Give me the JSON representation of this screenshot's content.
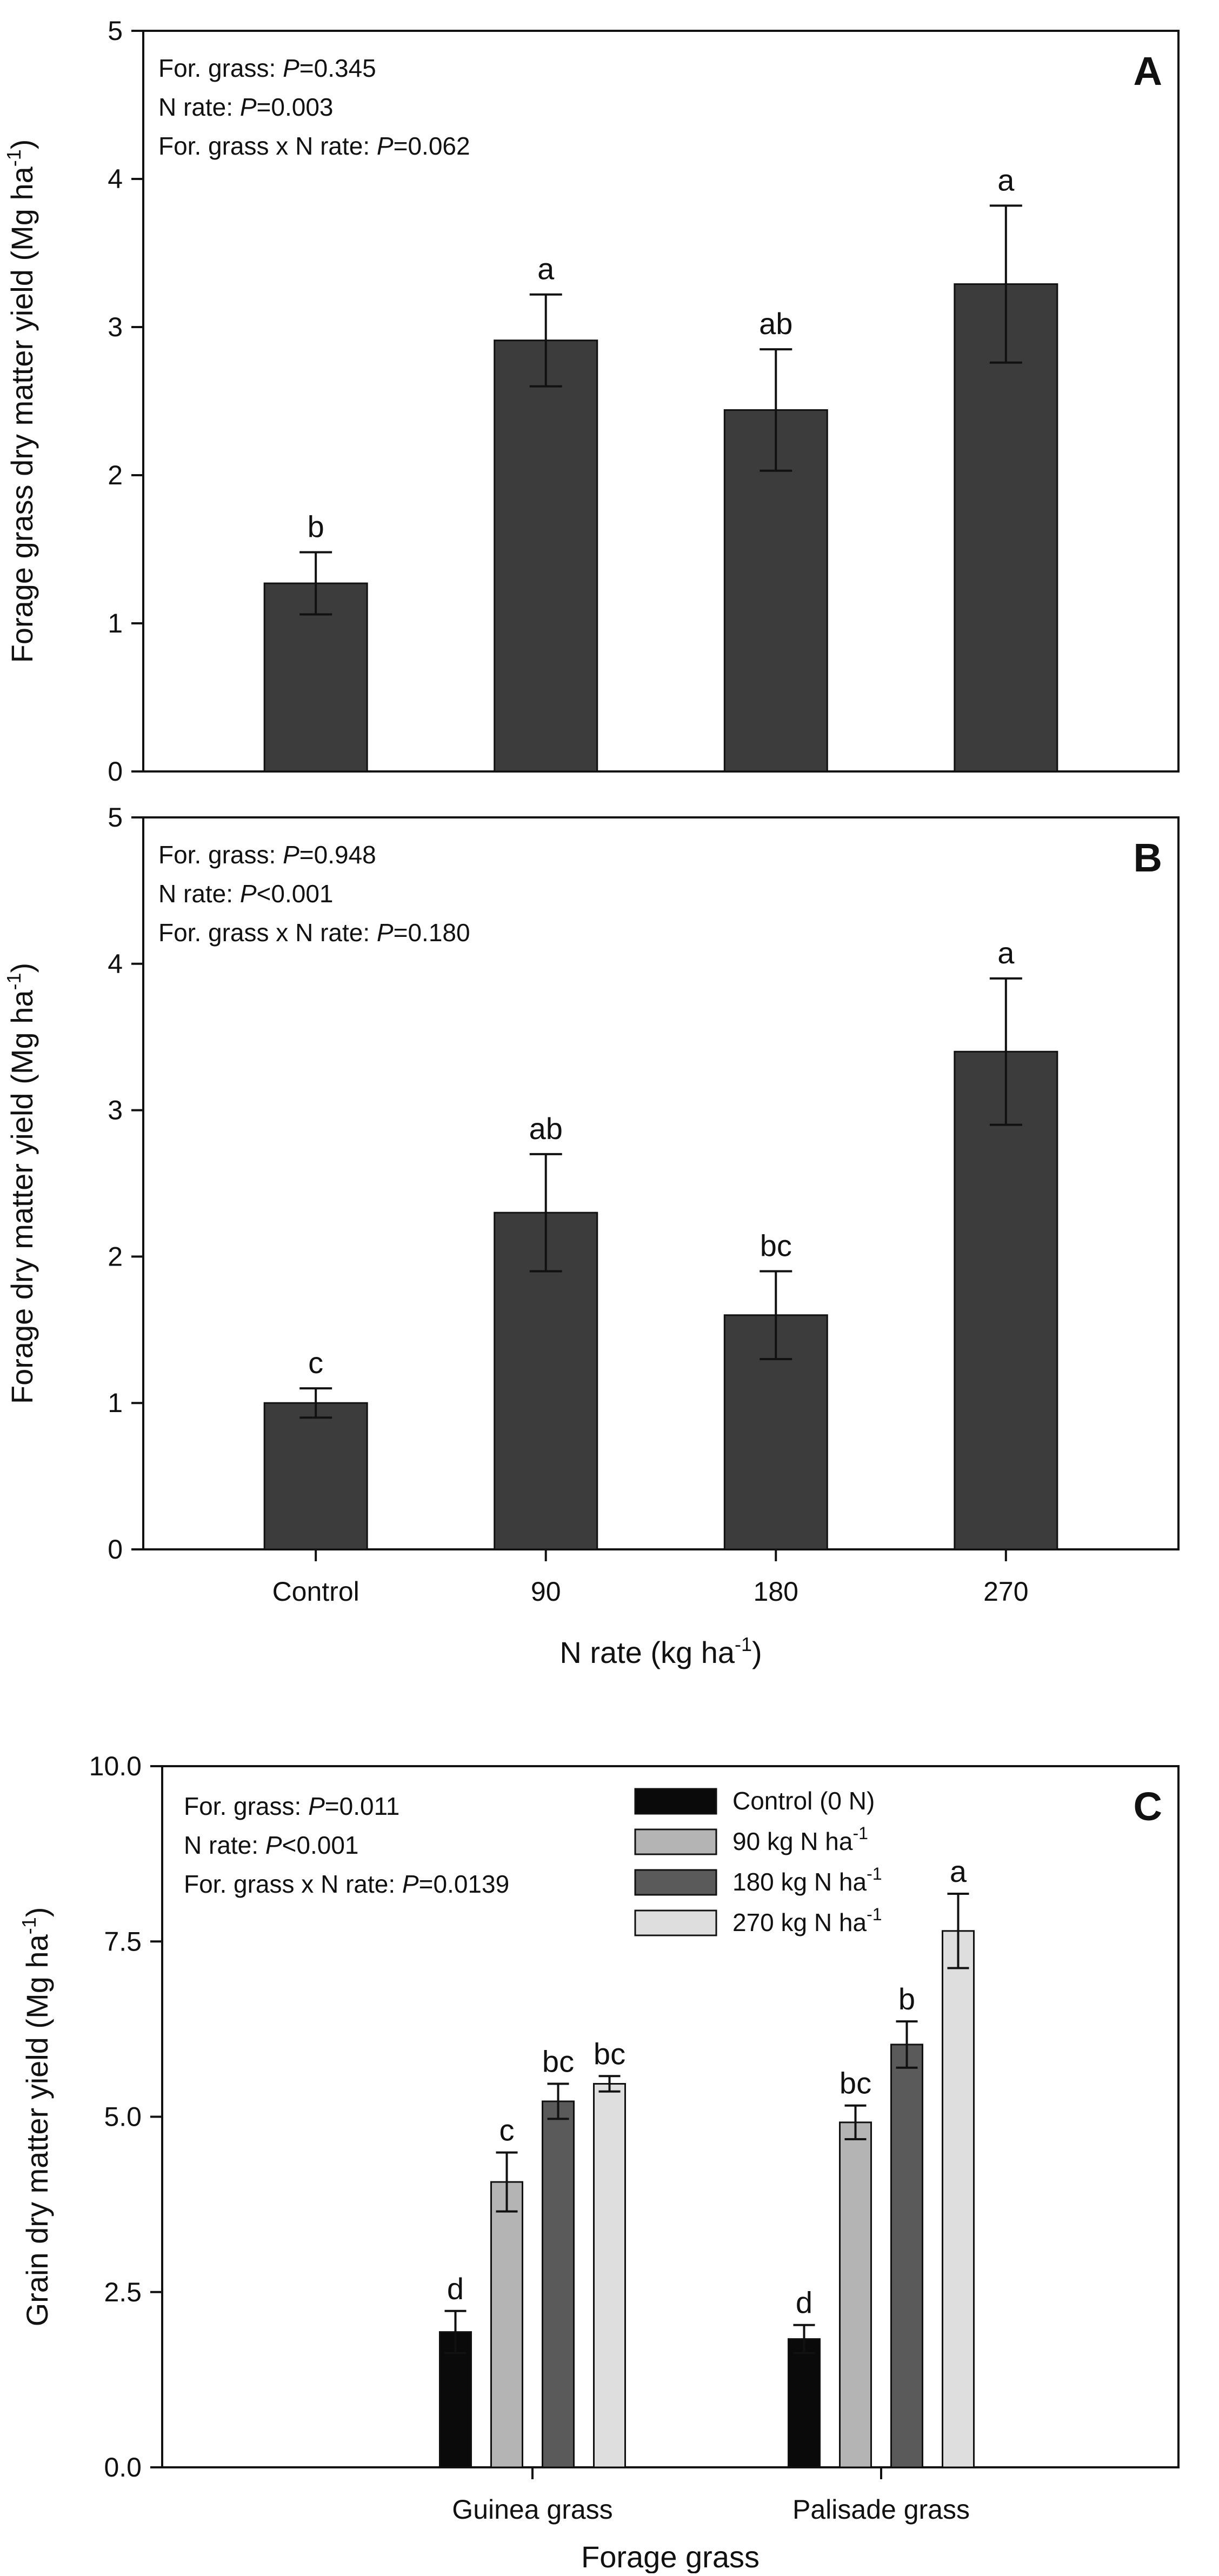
{
  "chart_data": [
    {
      "type": "bar",
      "panel_label": "A",
      "ylabel": "Forage grass dry matter yield (Mg ha",
      "ylabel_sup": "-1",
      "ylabel_end": ")",
      "xlabel": "",
      "ylim": [
        0,
        5
      ],
      "yticks": [
        "0",
        "1",
        "2",
        "3",
        "4",
        "5"
      ],
      "categories": [
        "Control",
        "90",
        "180",
        "270"
      ],
      "show_category_labels": false,
      "values": [
        1.27,
        2.91,
        2.44,
        3.29
      ],
      "errors": [
        0.21,
        0.31,
        0.41,
        0.53
      ],
      "letters": [
        "b",
        "a",
        "ab",
        "a"
      ],
      "bar_color": "#3c3c3c",
      "stats": [
        {
          "pre": "For. grass: ",
          "p": "P",
          "post": "=0.345"
        },
        {
          "pre": "N rate: ",
          "p": "P",
          "post": "=0.003"
        },
        {
          "pre": "For. grass x N rate: ",
          "p": "P",
          "post": "=0.062"
        }
      ]
    },
    {
      "type": "bar",
      "panel_label": "B",
      "ylabel": "Forage dry matter yield (Mg ha",
      "ylabel_sup": "-1",
      "ylabel_end": ")",
      "xlabel": "N rate (kg ha",
      "xlabel_sup": "-1",
      "xlabel_end": ")",
      "ylim": [
        0,
        5
      ],
      "yticks": [
        "0",
        "1",
        "2",
        "3",
        "4",
        "5"
      ],
      "categories": [
        "Control",
        "90",
        "180",
        "270"
      ],
      "show_category_labels": true,
      "values": [
        1.0,
        2.3,
        1.6,
        3.4
      ],
      "errors": [
        0.1,
        0.4,
        0.3,
        0.5
      ],
      "letters": [
        "c",
        "ab",
        "bc",
        "a"
      ],
      "bar_color": "#3c3c3c",
      "stats": [
        {
          "pre": "For. grass: ",
          "p": "P",
          "post": "=0.948"
        },
        {
          "pre": "N rate: ",
          "p": "P",
          "post": "<0.001"
        },
        {
          "pre": "For. grass x N rate: ",
          "p": "P",
          "post": "=0.180"
        }
      ]
    },
    {
      "type": "bar",
      "panel_label": "C",
      "ylabel": "Grain dry matter yield (Mg ha",
      "ylabel_sup": "-1",
      "ylabel_end": ")",
      "xlabel": "Forage grass",
      "ylim": [
        0,
        10
      ],
      "yticks": [
        "0.0",
        "2.5",
        "5.0",
        "7.5",
        "10.0"
      ],
      "categories": [
        "Guinea grass",
        "Palisade grass"
      ],
      "series": [
        {
          "name": "Control (0 N)",
          "name_sup": "",
          "color": "#0a0a0a",
          "values": [
            1.93,
            1.83
          ],
          "errors": [
            0.3,
            0.2
          ],
          "letters": [
            "d",
            "d"
          ]
        },
        {
          "name": "90 kg N ha",
          "name_sup": "-1",
          "color": "#b4b4b4",
          "values": [
            4.07,
            4.92
          ],
          "errors": [
            0.42,
            0.24
          ],
          "letters": [
            "c",
            "bc"
          ]
        },
        {
          "name": "180 kg N ha",
          "name_sup": "-1",
          "color": "#5a5a5a",
          "values": [
            5.22,
            6.03
          ],
          "errors": [
            0.25,
            0.33
          ],
          "letters": [
            "bc",
            "b"
          ]
        },
        {
          "name": "270 kg N ha",
          "name_sup": "-1",
          "color": "#dedede",
          "values": [
            5.47,
            7.65
          ],
          "errors": [
            0.11,
            0.53
          ],
          "letters": [
            "bc",
            "a"
          ]
        }
      ],
      "legend_position": "top-right",
      "stats": [
        {
          "pre": "For. grass: ",
          "p": "P",
          "post": "=0.011"
        },
        {
          "pre": "N rate: ",
          "p": "P",
          "post": "<0.001"
        },
        {
          "pre": "For. grass x N rate: ",
          "p": "P",
          "post": "=0.0139"
        }
      ]
    }
  ]
}
